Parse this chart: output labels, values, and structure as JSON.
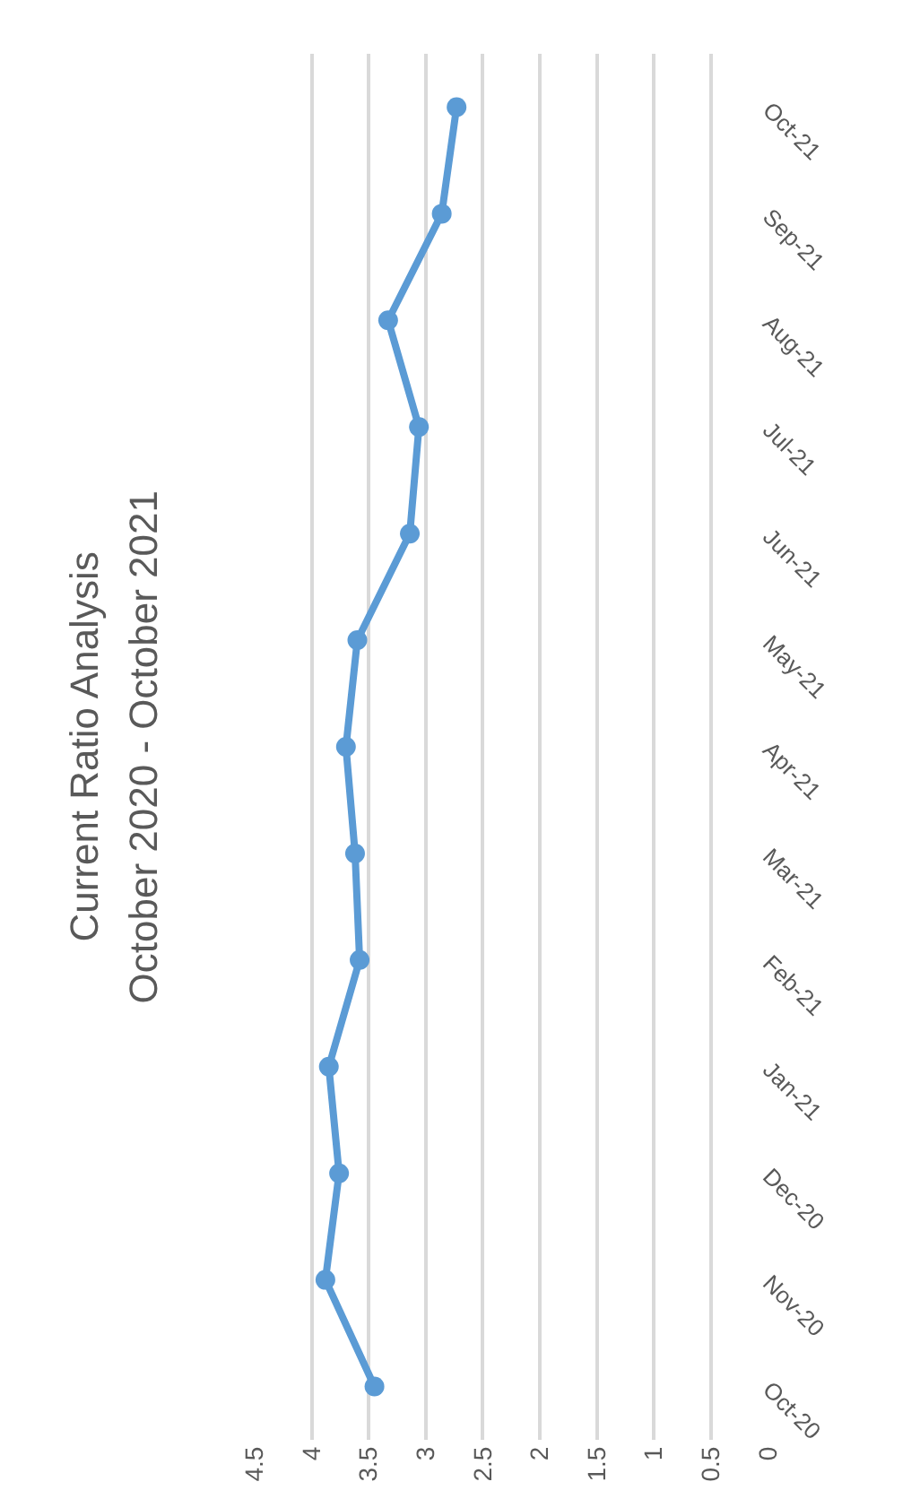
{
  "chart_data": {
    "type": "line",
    "orientation": "horizontal",
    "title": "Current Ratio Analysis",
    "subtitle": "October 2020 - October 2021",
    "categories": [
      "Oct-21",
      "Sep-21",
      "Aug-21",
      "Jul-21",
      "Jun-21",
      "May-21",
      "Apr-21",
      "Mar-21",
      "Feb-21",
      "Jan-21",
      "Dec-20",
      "Nov-20",
      "Oct-20"
    ],
    "series": [
      {
        "color": "#5b9bd5",
        "values": [
          2.73,
          2.86,
          3.33,
          3.06,
          3.14,
          3.6,
          3.7,
          3.62,
          3.58,
          3.85,
          3.76,
          3.88,
          3.45
        ]
      }
    ],
    "xlim": [
      4.5,
      0
    ],
    "xticks": [
      4.5,
      4,
      3.5,
      3,
      2.5,
      2,
      1.5,
      1,
      0.5,
      0
    ],
    "grid": "x",
    "marker": "circle",
    "line_style": "solid"
  }
}
